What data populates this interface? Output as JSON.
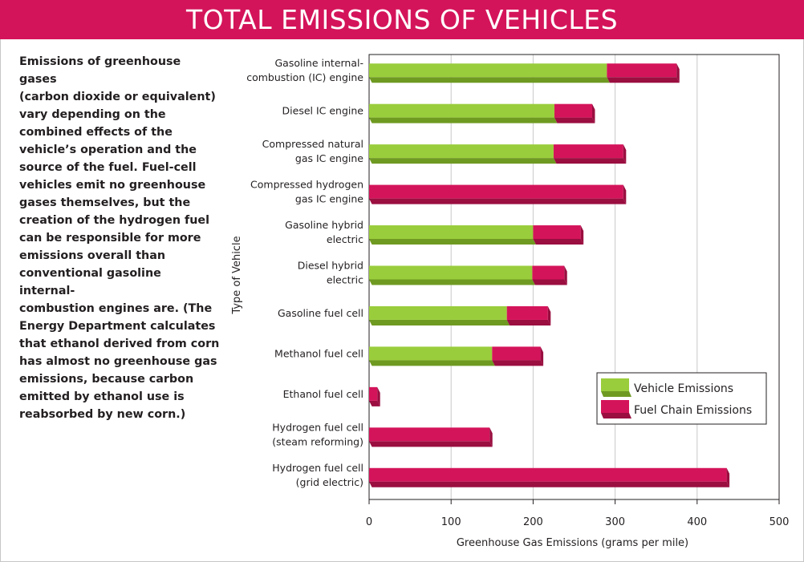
{
  "title": "TOTAL EMISSIONS OF VEHICLES",
  "description": "Emissions of greenhouse gases (carbon dioxide or equivalent) vary depending on the combined effects of the vehicle’s operation and the source of the fuel. Fuel-cell vehicles emit no greenhouse gases themselves, but the creation of the hydrogen fuel can be responsible for more emissions overall than conventional gasoline internal-combustion engines are. (The Energy Department calculates that ethanol derived from corn has almost no greenhouse gas emissions, because carbon emitted by ethanol use is reabsorbed by new corn.)",
  "description_lines": [
    "Emissions of greenhouse gases",
    "(carbon dioxide or equivalent)",
    "vary depending on the",
    "combined effects of the",
    "vehicle’s operation and the",
    "source of the fuel. Fuel-cell",
    "vehicles emit no greenhouse",
    "gases themselves, but the",
    "creation of the hydrogen fuel",
    "can be responsible for more",
    "emissions overall than",
    "conventional gasoline internal-",
    "combustion engines are. (The",
    "Energy Department calculates",
    "that ethanol derived from corn",
    "has almost no greenhouse gas",
    "emissions, because carbon",
    "emitted by ethanol use is",
    "reabsorbed by new corn.)"
  ],
  "colors": {
    "banner": "#d4145a",
    "vehicle": "#9acd3c",
    "vehicle_dark": "#6f9a22",
    "fuel": "#d4145a",
    "fuel_dark": "#9a0e40",
    "grid": "#c8c8c8"
  },
  "chart_data": {
    "type": "bar",
    "orientation": "horizontal",
    "stacked": true,
    "xlabel": "Greenhouse Gas Emissions (grams per mile)",
    "ylabel": "Type of Vehicle",
    "xlim": [
      0,
      500
    ],
    "xticks": [
      0,
      100,
      200,
      300,
      400,
      500
    ],
    "grid": true,
    "legend_position": "bottom-right",
    "categories": [
      [
        "Gasoline internal-",
        "combustion (IC) engine"
      ],
      [
        "Diesel IC engine"
      ],
      [
        "Compressed natural",
        "gas IC engine"
      ],
      [
        "Compressed hydrogen",
        "gas IC engine"
      ],
      [
        "Gasoline hybrid",
        "electric"
      ],
      [
        "Diesel hybrid",
        "electric"
      ],
      [
        "Gasoline fuel cell"
      ],
      [
        "Methanol fuel cell"
      ],
      [
        "Ethanol fuel cell"
      ],
      [
        "Hydrogen fuel cell",
        "(steam reforming)"
      ],
      [
        "Hydrogen fuel cell",
        "(grid electric)"
      ]
    ],
    "series": [
      {
        "name": "Vehicle Emissions",
        "values": [
          290,
          226,
          225,
          0,
          200,
          199,
          168,
          150,
          0,
          0,
          0
        ]
      },
      {
        "name": "Fuel Chain Emissions",
        "values": [
          85,
          46,
          85,
          310,
          58,
          39,
          50,
          59,
          10,
          147,
          436
        ]
      }
    ]
  }
}
